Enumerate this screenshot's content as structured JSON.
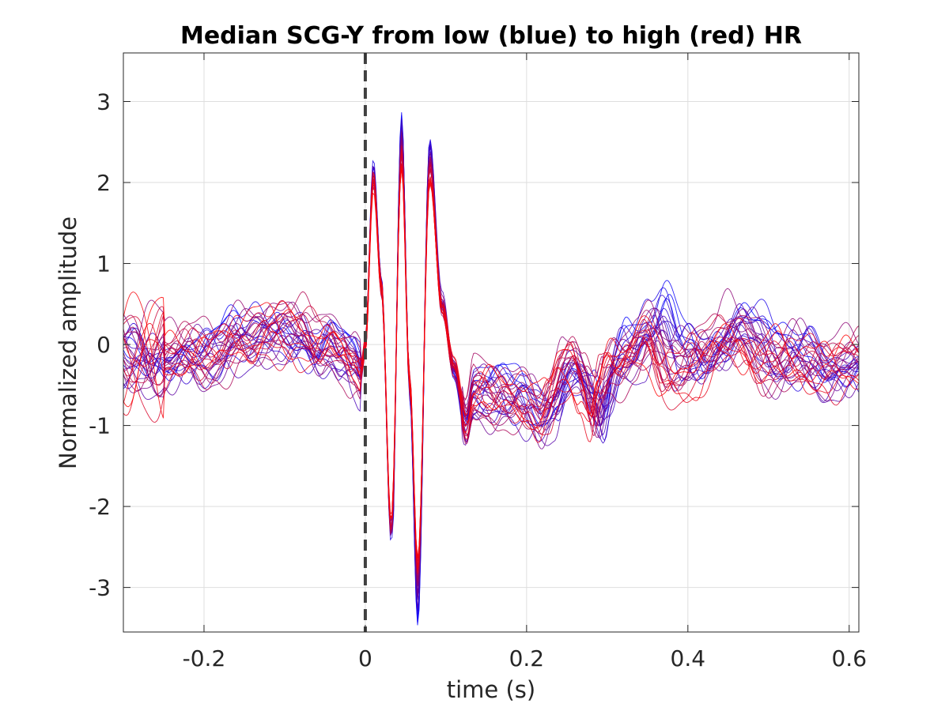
{
  "chart_data": {
    "type": "line",
    "title": "Median SCG-Y from low (blue) to high (red) HR",
    "xlabel": "time (s)",
    "ylabel": "Normalized amplitude",
    "xlim": [
      -0.3,
      0.612
    ],
    "ylim": [
      -3.55,
      3.6
    ],
    "grid": true,
    "legend": "none",
    "x_ticks": [
      -0.2,
      0,
      0.2,
      0.4,
      0.6
    ],
    "x_tick_labels": [
      "-0.2",
      "0",
      "0.2",
      "0.4",
      "0.6"
    ],
    "y_ticks": [
      3,
      2,
      1,
      0,
      -1,
      -2,
      -3
    ],
    "y_tick_labels": [
      "3",
      "2",
      "1",
      "0",
      "-1",
      "-2",
      "-3"
    ],
    "vline": {
      "x": 0,
      "color": "#404040",
      "style": "dashed"
    },
    "colors": {
      "low_hr": "#0000ff",
      "high_hr": "#ff0000",
      "grid": "#dedede",
      "axis": "#262626"
    },
    "median_waveform": {
      "x": [
        -0.3,
        -0.28,
        -0.25,
        -0.2,
        -0.15,
        -0.12,
        -0.08,
        -0.06,
        -0.045,
        -0.03,
        -0.015,
        -0.005,
        0,
        0.01,
        0.02,
        0.032,
        0.045,
        0.055,
        0.065,
        0.08,
        0.095,
        0.11,
        0.125,
        0.135,
        0.15,
        0.17,
        0.19,
        0.21,
        0.225,
        0.24,
        0.255,
        0.27,
        0.285,
        0.3,
        0.31,
        0.325,
        0.34,
        0.355,
        0.375,
        0.4,
        0.42,
        0.45,
        0.48,
        0.5,
        0.53,
        0.56,
        0.59,
        0.612
      ],
      "y": [
        -0.15,
        -0.05,
        -0.2,
        -0.1,
        0.05,
        0.2,
        0.1,
        0.0,
        0.05,
        -0.1,
        -0.25,
        -0.35,
        0.0,
        2.3,
        0.8,
        -2.5,
        2.5,
        -0.5,
        -3.0,
        2.3,
        0.5,
        -0.3,
        -1.0,
        -0.6,
        -0.55,
        -0.6,
        -0.7,
        -0.75,
        -0.85,
        -0.65,
        -0.35,
        -0.3,
        -0.55,
        -0.85,
        -0.45,
        -0.2,
        -0.3,
        -0.15,
        0.1,
        -0.4,
        -0.5,
        -0.3,
        0.0,
        -0.05,
        -0.25,
        -0.1,
        -0.3,
        -0.25
      ]
    },
    "n_traces": 34,
    "trace_order": "low HR (blue) to high HR (red)"
  }
}
